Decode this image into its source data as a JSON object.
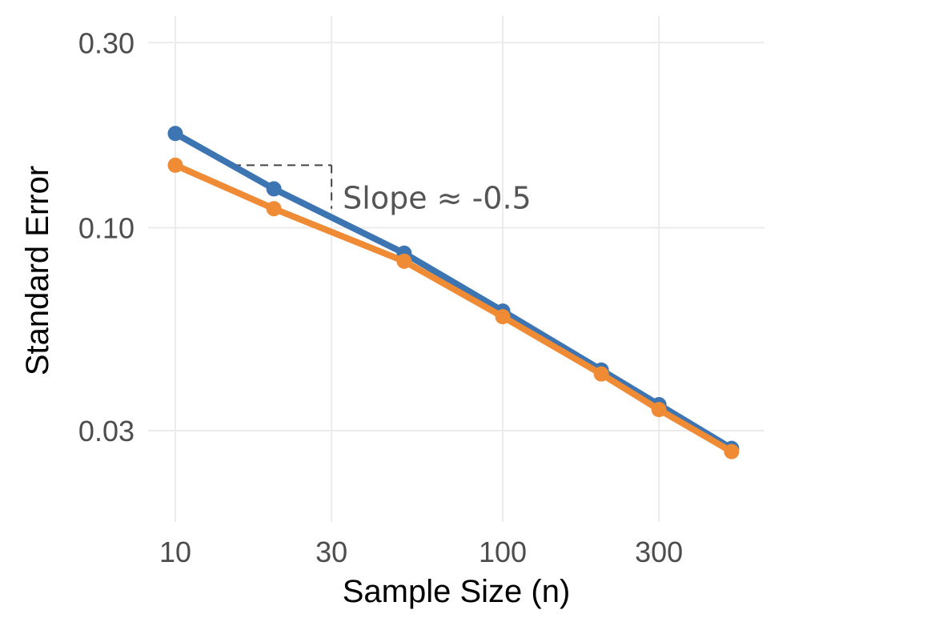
{
  "chart_data": {
    "type": "line",
    "title": "",
    "xlabel": "Sample Size (n)",
    "ylabel": "Standard Error",
    "x_scale": "log",
    "y_scale": "log",
    "xlim": [
      10,
      500
    ],
    "ylim": [
      0.021,
      0.3
    ],
    "x_ticks": [
      10,
      30,
      100,
      300
    ],
    "x_tick_labels": [
      "10",
      "30",
      "100",
      "300"
    ],
    "y_ticks": [
      0.03,
      0.1,
      0.3
    ],
    "y_tick_labels": [
      "0.03",
      "0.10",
      "0.30"
    ],
    "grid": true,
    "x": [
      10,
      20,
      50,
      100,
      200,
      300,
      500
    ],
    "series": [
      {
        "color": "#3d75b3",
        "values": [
          0.175,
          0.126,
          0.086,
          0.061,
          0.043,
          0.035,
          0.027
        ]
      },
      {
        "color": "#ef8a35",
        "values": [
          0.145,
          0.112,
          0.082,
          0.059,
          0.042,
          0.034,
          0.0265
        ]
      }
    ],
    "annotation": {
      "text": "Slope ≈ -0.5",
      "triangle": {
        "x_start": 15,
        "x_end": 30,
        "y": 0.145,
        "y_end": 0.112
      }
    }
  }
}
